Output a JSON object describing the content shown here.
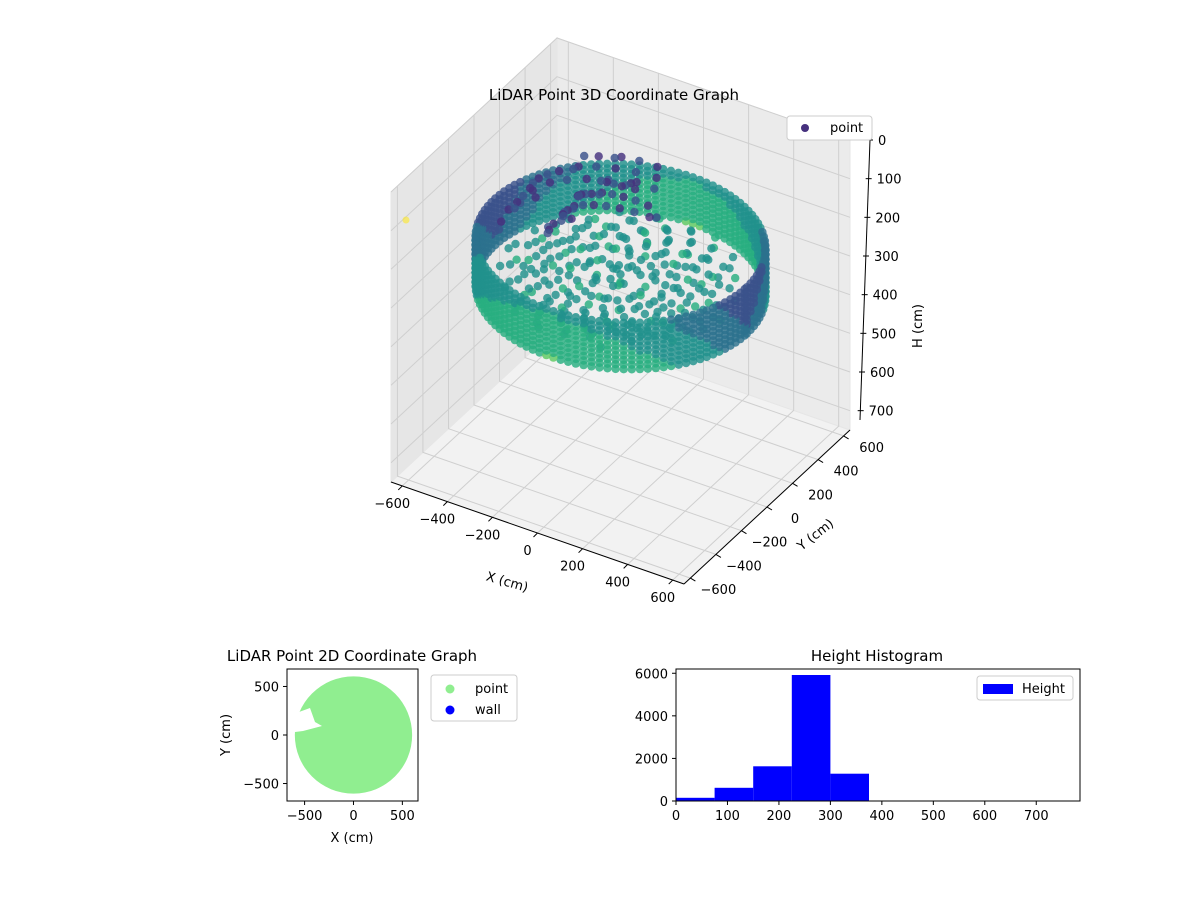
{
  "chart_data": [
    {
      "type": "scatter",
      "projection": "3d",
      "title": "LiDAR Point 3D Coordinate Graph",
      "xlabel": "X (cm)",
      "ylabel": "Y (cm)",
      "zlabel": "H (cm)",
      "xticks": [
        "−600",
        "−400",
        "−200",
        "0",
        "200",
        "400",
        "600"
      ],
      "yticks": [
        "−600",
        "−400",
        "−200",
        "0",
        "200",
        "400",
        "600"
      ],
      "zticks": [
        "0",
        "100",
        "200",
        "300",
        "400",
        "500",
        "600",
        "700"
      ],
      "xlim": [
        -650,
        650
      ],
      "ylim": [
        -650,
        650
      ],
      "zlim": [
        0,
        750
      ],
      "z_inverted": true,
      "grid": true,
      "legend": {
        "placement": "top-right",
        "entries": [
          {
            "label": "point",
            "color": "#46317e"
          }
        ]
      },
      "colormap": "viridis",
      "series": [
        {
          "name": "point",
          "shape": "ring of points around the origin",
          "ring_radius": 560,
          "height_range": [
            200,
            330
          ],
          "interior_floor_height": 280,
          "outlier": {
            "x": -650,
            "y": -600,
            "h": 0
          }
        }
      ]
    },
    {
      "type": "scatter",
      "title": "LiDAR Point 2D Coordinate Graph",
      "xlabel": "X (cm)",
      "ylabel": "Y (cm)",
      "xticks": [
        "−500",
        "0",
        "500"
      ],
      "yticks": [
        "−500",
        "0",
        "500"
      ],
      "xlim": [
        -680,
        660
      ],
      "ylim": [
        -680,
        680
      ],
      "legend": {
        "placement": "outside-right",
        "entries": [
          {
            "label": "point",
            "color": "#90ee90"
          },
          {
            "label": "wall",
            "color": "#0000ff"
          }
        ]
      },
      "series": [
        {
          "name": "point",
          "color": "#90ee90",
          "disc_radius": 600,
          "disc_center": [
            0,
            0
          ]
        },
        {
          "name": "wall",
          "color": "#0000ff",
          "values": []
        }
      ]
    },
    {
      "type": "bar",
      "title": "Height Histogram",
      "xticks": [
        "0",
        "100",
        "200",
        "300",
        "400",
        "500",
        "600",
        "700"
      ],
      "yticks": [
        "0",
        "2000",
        "4000",
        "6000"
      ],
      "xlim": [
        0,
        785
      ],
      "ylim": [
        0,
        6200
      ],
      "legend": {
        "placement": "top-right",
        "entries": [
          {
            "label": "Height",
            "color": "#0000ff"
          }
        ]
      },
      "series": [
        {
          "name": "Height",
          "color": "#0000ff",
          "bins": [
            {
              "x0": 0,
              "x1": 75,
              "count": 150
            },
            {
              "x0": 75,
              "x1": 150,
              "count": 620
            },
            {
              "x0": 150,
              "x1": 225,
              "count": 1630
            },
            {
              "x0": 225,
              "x1": 300,
              "count": 5920
            },
            {
              "x0": 300,
              "x1": 375,
              "count": 1280
            },
            {
              "x0": 375,
              "x1": 450,
              "count": 0
            },
            {
              "x0": 450,
              "x1": 525,
              "count": 0
            },
            {
              "x0": 525,
              "x1": 600,
              "count": 0
            },
            {
              "x0": 600,
              "x1": 675,
              "count": 0
            },
            {
              "x0": 675,
              "x1": 750,
              "count": 0
            }
          ]
        }
      ]
    }
  ]
}
